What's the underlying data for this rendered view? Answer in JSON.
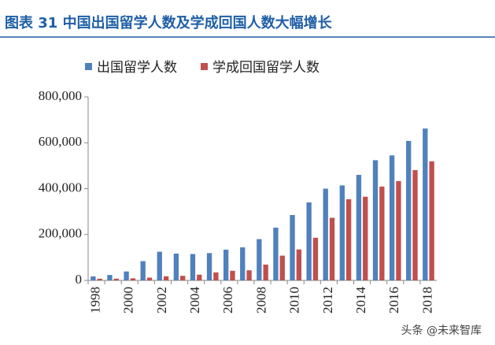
{
  "chart_data": {
    "type": "bar",
    "title": "图表 31 中国出国留学人数及学成回国人数大幅增长",
    "watermark": "头条 @未来智库",
    "categories": [
      "1998",
      null,
      "2000",
      null,
      "2002",
      null,
      "2004",
      null,
      "2006",
      null,
      "2008",
      null,
      "2010",
      null,
      "2012",
      null,
      "2014",
      null,
      "2016",
      null,
      "2018"
    ],
    "series": [
      {
        "name": "出国留学人数",
        "color": "#4f81bd",
        "values": [
          17600,
          23700,
          39000,
          84000,
          125000,
          117000,
          115000,
          119000,
          134000,
          144000,
          180000,
          230000,
          285000,
          340000,
          400000,
          414000,
          460000,
          524000,
          545000,
          608000,
          662000
        ]
      },
      {
        "name": "学成回国留学人数",
        "color": "#c0504d",
        "values": [
          7400,
          7700,
          9100,
          12200,
          18000,
          20000,
          25000,
          35000,
          42000,
          44000,
          69000,
          108000,
          135000,
          186000,
          273000,
          354000,
          365000,
          409000,
          433000,
          481000,
          519000
        ]
      }
    ],
    "ylim": [
      0,
      800000
    ],
    "yticks": [
      0,
      {
        "value": 200000,
        "label": "200,000"
      },
      {
        "value": 400000,
        "label": "400,000"
      },
      {
        "value": 600000,
        "label": "600,000"
      },
      {
        "value": 800000,
        "label": "800,000"
      }
    ]
  }
}
